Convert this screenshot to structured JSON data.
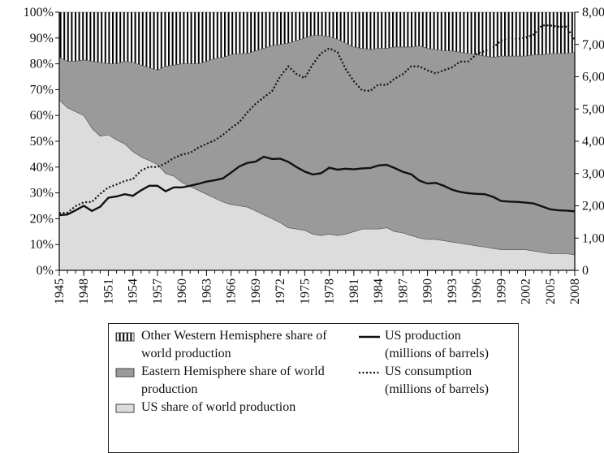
{
  "chart_data": {
    "type": "stacked-area-line",
    "x": [
      1945,
      1946,
      1947,
      1948,
      1949,
      1950,
      1951,
      1952,
      1953,
      1954,
      1955,
      1956,
      1957,
      1958,
      1959,
      1960,
      1961,
      1962,
      1963,
      1964,
      1965,
      1966,
      1967,
      1968,
      1969,
      1970,
      1971,
      1972,
      1973,
      1974,
      1975,
      1976,
      1977,
      1978,
      1979,
      1980,
      1981,
      1982,
      1983,
      1984,
      1985,
      1986,
      1987,
      1988,
      1989,
      1990,
      1991,
      1992,
      1993,
      1994,
      1995,
      1996,
      1997,
      1998,
      1999,
      2000,
      2001,
      2002,
      2003,
      2004,
      2005,
      2006,
      2007,
      2008
    ],
    "xlim": [
      1945,
      2008
    ],
    "xticks": [
      1945,
      1948,
      1951,
      1954,
      1957,
      1960,
      1963,
      1966,
      1969,
      1972,
      1975,
      1978,
      1981,
      1984,
      1987,
      1990,
      1993,
      1996,
      1999,
      2002,
      2005,
      2008
    ],
    "ylim": [
      0,
      100
    ],
    "yticks": [
      {
        "value": 0,
        "label": "0%"
      },
      {
        "value": 10,
        "label": "10%"
      },
      {
        "value": 20,
        "label": "20%"
      },
      {
        "value": 30,
        "label": "30%"
      },
      {
        "value": 40,
        "label": "40%"
      },
      {
        "value": 50,
        "label": "50%"
      },
      {
        "value": 60,
        "label": "60%"
      },
      {
        "value": 70,
        "label": "70%"
      },
      {
        "value": 80,
        "label": "80%"
      },
      {
        "value": 90,
        "label": "90%"
      },
      {
        "value": 100,
        "label": "100%"
      }
    ],
    "y2lim": [
      0,
      8000
    ],
    "y2ticks": [
      0,
      {
        "value": 1000,
        "label": "1,000"
      },
      {
        "value": 2000,
        "label": "2,000"
      },
      {
        "value": 3000,
        "label": "3,000"
      },
      {
        "value": 4000,
        "label": "4,000"
      },
      {
        "value": 5000,
        "label": "5,000"
      },
      {
        "value": 6000,
        "label": "6,000"
      },
      {
        "value": 7000,
        "label": "7,000"
      },
      {
        "value": 8000,
        "label": "8,000"
      }
    ],
    "series": [
      {
        "name": "US share of world production",
        "kind": "area",
        "color": "#dcdcdc",
        "values": [
          66,
          63,
          61.5,
          60,
          55,
          52,
          52.5,
          50.5,
          49,
          46,
          44,
          42.5,
          41,
          37.5,
          36.5,
          34,
          32.5,
          31,
          29.5,
          28,
          26.5,
          25.5,
          25,
          24.5,
          23,
          21.5,
          20,
          18.5,
          16.5,
          16,
          15.5,
          14,
          13.5,
          14,
          13.5,
          14,
          15,
          16,
          16,
          16,
          16.5,
          15,
          14.5,
          13.5,
          12.5,
          12,
          12,
          11.5,
          11,
          10.5,
          10,
          9.5,
          9,
          8.5,
          8,
          8,
          8,
          8,
          7.5,
          7,
          6.5,
          6.5,
          6.5,
          6
        ]
      },
      {
        "name": "Eastern Hemisphere share of world production",
        "kind": "area",
        "color": "#9a9a9a",
        "values": [
          16.5,
          18,
          19.5,
          21.5,
          26,
          28.5,
          27.5,
          29.5,
          32,
          34.5,
          35.5,
          36,
          36.5,
          41.5,
          43,
          46,
          47.5,
          49,
          51.5,
          54,
          56,
          58,
          59,
          59.5,
          62,
          64.5,
          67,
          69,
          71.5,
          73,
          74.5,
          77,
          77.5,
          76.5,
          76,
          74,
          71.5,
          70,
          69.5,
          70,
          69.5,
          71.5,
          72,
          73,
          74.5,
          74,
          73.5,
          73.5,
          74,
          74,
          74,
          74,
          74,
          74,
          75,
          75,
          75,
          75,
          76,
          76.5,
          77.5,
          77.5,
          77.5,
          78.5
        ]
      },
      {
        "name": "Other Western Hemisphere share of world production",
        "kind": "area",
        "color": "#000000",
        "hatch": "vertical",
        "values": [
          17.5,
          19,
          19,
          18.5,
          19,
          19.5,
          20,
          20,
          19,
          19.5,
          20.5,
          21.5,
          22.5,
          21,
          20.5,
          20,
          20,
          20,
          19,
          18,
          17.5,
          16.5,
          16,
          16,
          15,
          14,
          13,
          12.5,
          12,
          11,
          10,
          9,
          9,
          9.5,
          10.5,
          12,
          13.5,
          14,
          14.5,
          14,
          14,
          13.5,
          13.5,
          13.5,
          13,
          14,
          14.5,
          15,
          15,
          15.5,
          16,
          16.5,
          17,
          17.5,
          17,
          17,
          17,
          17,
          16.5,
          16.5,
          16,
          16,
          16,
          15.5
        ]
      },
      {
        "name": "US production (millions of barrels)",
        "kind": "line",
        "axis": "y2",
        "color": "#111111",
        "dash": "solid",
        "values": [
          1710,
          1730,
          1860,
          2000,
          1840,
          1970,
          2250,
          2290,
          2360,
          2310,
          2480,
          2620,
          2620,
          2450,
          2570,
          2570,
          2620,
          2680,
          2750,
          2790,
          2850,
          3030,
          3220,
          3330,
          3370,
          3520,
          3450,
          3460,
          3360,
          3200,
          3060,
          2970,
          3010,
          3180,
          3120,
          3150,
          3130,
          3160,
          3170,
          3250,
          3270,
          3170,
          3050,
          2980,
          2780,
          2690,
          2710,
          2620,
          2500,
          2430,
          2390,
          2370,
          2360,
          2280,
          2150,
          2130,
          2120,
          2100,
          2070,
          1980,
          1890,
          1860,
          1850,
          1830
        ]
      },
      {
        "name": "US consumption (millions of barrels)",
        "kind": "line",
        "axis": "y2",
        "color": "#111111",
        "dash": "dotted",
        "values": [
          1770,
          1790,
          1990,
          2110,
          2120,
          2370,
          2570,
          2660,
          2770,
          2830,
          3090,
          3210,
          3200,
          3320,
          3480,
          3590,
          3640,
          3800,
          3920,
          4030,
          4200,
          4410,
          4590,
          4900,
          5160,
          5360,
          5550,
          6010,
          6320,
          6080,
          5960,
          6390,
          6730,
          6880,
          6760,
          6240,
          5860,
          5580,
          5560,
          5760,
          5740,
          5940,
          6080,
          6320,
          6320,
          6200,
          6100,
          6200,
          6290,
          6470,
          6470,
          6700,
          6800,
          6900,
          7120,
          7210,
          7170,
          7210,
          7310,
          7590,
          7590,
          7550,
          7550,
          7140
        ]
      }
    ]
  }
}
